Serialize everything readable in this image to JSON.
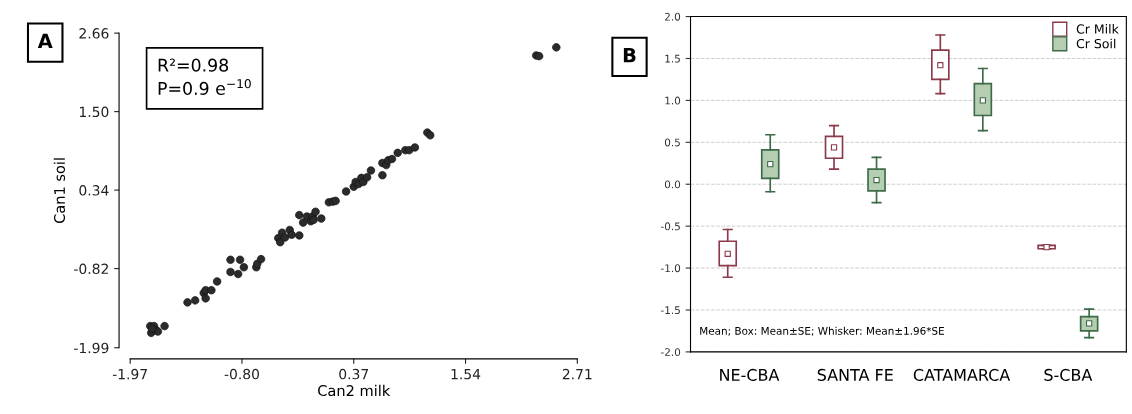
{
  "chart_data": [
    {
      "type": "scatter",
      "xlabel": "Can2 milk",
      "ylabel": "Can1 soil",
      "annotations": [
        "A",
        "R²=0.98",
        "P=0.9 e$^{−10}$"
      ],
      "xlim": [
        -1.97,
        2.71
      ],
      "ylim": [
        -1.99,
        2.66
      ],
      "xticks": [
        {
          "value": -1.97,
          "label": "-1.97"
        },
        {
          "value": -0.8,
          "label": "-0.80"
        },
        {
          "value": 0.37,
          "label": "0.37"
        },
        {
          "value": 1.54,
          "label": "1.54"
        },
        {
          "value": 2.71,
          "label": "2.71"
        }
      ],
      "yticks": [
        {
          "value": -1.99,
          "label": "-1.99"
        },
        {
          "value": -0.82,
          "label": "-0.82"
        },
        {
          "value": 0.34,
          "label": "0.34"
        },
        {
          "value": 1.5,
          "label": "1.50"
        },
        {
          "value": 2.66,
          "label": "2.66"
        }
      ],
      "marker": "circle",
      "grid": false,
      "legend": false,
      "series": [
        {
          "color": "#2b2b2b",
          "x": [
            -1.76,
            -1.72,
            -1.75,
            -1.7,
            -1.68,
            -1.61,
            -1.74,
            -1.37,
            -1.29,
            -1.2,
            -1.18,
            -1.18,
            -1.12,
            -1.06,
            -0.92,
            -0.82,
            -0.92,
            -0.84,
            -0.78,
            -0.65,
            -0.64,
            -0.6,
            -0.42,
            -0.4,
            -0.38,
            -0.35,
            -0.3,
            -0.28,
            -0.2,
            -0.2,
            -0.16,
            -0.12,
            -0.08,
            -0.06,
            -0.03,
            -0.05,
            0.03,
            0.11,
            0.15,
            0.18,
            0.29,
            0.37,
            0.39,
            0.42,
            0.45,
            0.47,
            0.51,
            0.55,
            0.67,
            0.67,
            0.71,
            0.73,
            0.77,
            0.83,
            0.91,
            0.95,
            1.01,
            1.14,
            1.17,
            2.28,
            2.31,
            2.49
          ],
          "values": [
            -1.67,
            -1.67,
            -1.77,
            -1.73,
            -1.75,
            -1.67,
            -1.71,
            -1.32,
            -1.29,
            -1.18,
            -1.14,
            -1.26,
            -1.14,
            -1.01,
            -0.69,
            -0.69,
            -0.87,
            -0.9,
            -0.8,
            -0.8,
            -0.75,
            -0.68,
            -0.37,
            -0.43,
            -0.29,
            -0.36,
            -0.25,
            -0.32,
            -0.33,
            -0.03,
            -0.14,
            -0.05,
            -0.12,
            -0.05,
            0.02,
            -0.1,
            -0.08,
            0.16,
            0.17,
            0.18,
            0.32,
            0.39,
            0.46,
            0.43,
            0.52,
            0.46,
            0.53,
            0.63,
            0.56,
            0.74,
            0.71,
            0.78,
            0.8,
            0.89,
            0.93,
            0.93,
            0.97,
            1.19,
            1.15,
            2.33,
            2.32,
            2.45
          ]
        }
      ]
    },
    {
      "type": "box",
      "categories": [
        "NE-CBA",
        "SANTA FE",
        "CATAMARCA",
        "S-CBA"
      ],
      "annotations": [
        "B",
        "Mean; Box: Mean±SE; Whisker: Mean±1.96*SE"
      ],
      "ylim": [
        -2.0,
        2.0
      ],
      "yticks": [
        {
          "value": -2.0,
          "label": "-2.0"
        },
        {
          "value": -1.5,
          "label": "-1.5"
        },
        {
          "value": -1.0,
          "label": "-1.0"
        },
        {
          "value": -0.5,
          "label": "-0.5"
        },
        {
          "value": 0.0,
          "label": "0.0"
        },
        {
          "value": 0.5,
          "label": "0.5"
        },
        {
          "value": 1.0,
          "label": "1.0"
        },
        {
          "value": 1.5,
          "label": "1.5"
        },
        {
          "value": 2.0,
          "label": "2.0"
        }
      ],
      "grid": "y",
      "legend": "top right",
      "marker": "square",
      "series": [
        {
          "name": "Cr Milk",
          "color": "#8b3a4a",
          "boxes": [
            {
              "low": -1.11,
              "q1": -0.97,
              "median": -0.83,
              "q3": -0.68,
              "high": -0.54
            },
            {
              "low": 0.18,
              "q1": 0.31,
              "median": 0.44,
              "q3": 0.57,
              "high": 0.7
            },
            {
              "low": 1.08,
              "q1": 1.25,
              "median": 1.42,
              "q3": 1.6,
              "high": 1.78
            },
            {
              "low": -0.77,
              "q1": -0.77,
              "median": -0.75,
              "q3": -0.73,
              "high": -0.73
            }
          ]
        },
        {
          "name": "Cr Soil",
          "color": "#b5cdb0",
          "boxes": [
            {
              "low": -0.09,
              "q1": 0.07,
              "median": 0.24,
              "q3": 0.41,
              "high": 0.59
            },
            {
              "low": -0.22,
              "q1": -0.08,
              "median": 0.05,
              "q3": 0.18,
              "high": 0.32
            },
            {
              "low": 0.64,
              "q1": 0.82,
              "median": 1.0,
              "q3": 1.2,
              "high": 1.38
            },
            {
              "low": -1.83,
              "q1": -1.75,
              "median": -1.66,
              "q3": -1.58,
              "high": -1.49
            }
          ]
        }
      ]
    }
  ]
}
